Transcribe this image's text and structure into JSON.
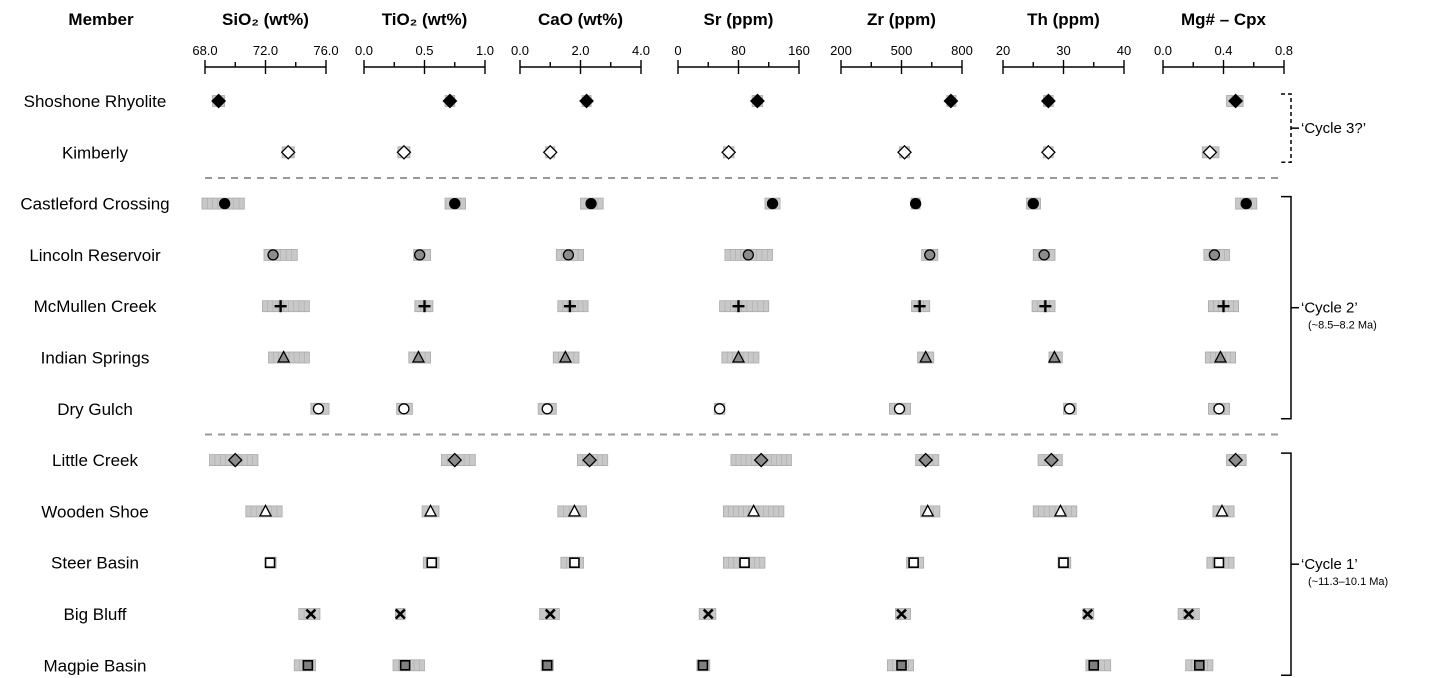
{
  "chart_data": {
    "type": "scatter",
    "member_header": "Member",
    "columns": [
      {
        "title": "SiO₂ (wt%)",
        "ticks": [
          "68.0",
          "72.0",
          "76.0"
        ],
        "xlim": [
          68,
          76
        ]
      },
      {
        "title": "TiO₂ (wt%)",
        "ticks": [
          "0.0",
          "0.5",
          "1.0"
        ],
        "xlim": [
          0,
          1
        ]
      },
      {
        "title": "CaO (wt%)",
        "ticks": [
          "0.0",
          "2.0",
          "4.0"
        ],
        "xlim": [
          0,
          4
        ]
      },
      {
        "title": "Sr (ppm)",
        "ticks": [
          "0",
          "80",
          "160"
        ],
        "xlim": [
          0,
          160
        ]
      },
      {
        "title": "Zr (ppm)",
        "ticks": [
          "200",
          "500",
          "800"
        ],
        "xlim": [
          200,
          800
        ]
      },
      {
        "title": "Th (ppm)",
        "ticks": [
          "20",
          "30",
          "40"
        ],
        "xlim": [
          20,
          40
        ]
      },
      {
        "title": "Mg# – Cpx",
        "ticks": [
          "0.0",
          "0.4",
          "0.8"
        ],
        "xlim": [
          0,
          0.8
        ]
      }
    ],
    "members": [
      {
        "name": "Shoshone Rhyolite",
        "marker": "diamond",
        "fill": "#000000",
        "values": [
          68.9,
          0.71,
          2.2,
          105,
          745,
          27.5,
          0.48
        ],
        "ranges": [
          [
            68.5,
            69.3
          ],
          [
            0.67,
            0.75
          ],
          [
            2.05,
            2.35
          ],
          [
            98,
            112
          ],
          [
            725,
            770
          ],
          [
            26.7,
            28.3
          ],
          [
            0.42,
            0.53
          ]
        ]
      },
      {
        "name": "Kimberly",
        "marker": "diamond",
        "fill": "#ffffff",
        "values": [
          73.5,
          0.33,
          1.0,
          67,
          515,
          27.5,
          0.31
        ],
        "ranges": [
          [
            73.1,
            73.9
          ],
          [
            0.28,
            0.38
          ],
          [
            0.85,
            1.15
          ],
          [
            60,
            74
          ],
          [
            490,
            540
          ],
          [
            26.7,
            28.3
          ],
          [
            0.26,
            0.37
          ]
        ]
      },
      {
        "name": "Castleford Crossing",
        "marker": "circle",
        "fill": "#000000",
        "values": [
          69.3,
          0.75,
          2.35,
          125,
          570,
          25.0,
          0.55
        ],
        "ranges": [
          [
            67.8,
            70.6
          ],
          [
            0.67,
            0.84
          ],
          [
            2.0,
            2.75
          ],
          [
            115,
            135
          ],
          [
            548,
            592
          ],
          [
            23.9,
            26.2
          ],
          [
            0.48,
            0.62
          ]
        ]
      },
      {
        "name": "Lincoln Reservoir",
        "marker": "circle",
        "fill": "#8c8c8c",
        "values": [
          72.5,
          0.46,
          1.6,
          93,
          640,
          26.8,
          0.34
        ],
        "ranges": [
          [
            71.9,
            74.1
          ],
          [
            0.41,
            0.55
          ],
          [
            1.2,
            2.1
          ],
          [
            62,
            125
          ],
          [
            600,
            680
          ],
          [
            25.0,
            28.6
          ],
          [
            0.27,
            0.44
          ]
        ]
      },
      {
        "name": "McMullen Creek",
        "marker": "plus",
        "fill": "#000000",
        "values": [
          73.0,
          0.5,
          1.65,
          80,
          590,
          27.0,
          0.4
        ],
        "ranges": [
          [
            71.8,
            74.9
          ],
          [
            0.42,
            0.57
          ],
          [
            1.25,
            2.25
          ],
          [
            55,
            120
          ],
          [
            550,
            640
          ],
          [
            24.8,
            28.6
          ],
          [
            0.3,
            0.5
          ]
        ]
      },
      {
        "name": "Indian Springs",
        "marker": "triangle",
        "fill": "#8c8c8c",
        "values": [
          73.2,
          0.45,
          1.5,
          80,
          620,
          28.5,
          0.38
        ],
        "ranges": [
          [
            72.2,
            74.9
          ],
          [
            0.37,
            0.55
          ],
          [
            1.1,
            1.95
          ],
          [
            58,
            107
          ],
          [
            580,
            660
          ],
          [
            27.6,
            29.8
          ],
          [
            0.28,
            0.48
          ]
        ]
      },
      {
        "name": "Dry Gulch",
        "marker": "circle",
        "fill": "#ffffff",
        "values": [
          75.5,
          0.33,
          0.9,
          55,
          490,
          31.0,
          0.37
        ],
        "ranges": [
          [
            75.0,
            76.2
          ],
          [
            0.27,
            0.4
          ],
          [
            0.6,
            1.2
          ],
          [
            48,
            62
          ],
          [
            440,
            545
          ],
          [
            30.0,
            32.1
          ],
          [
            0.3,
            0.44
          ]
        ]
      },
      {
        "name": "Little Creek",
        "marker": "diamond",
        "fill": "#8c8c8c",
        "values": [
          70.0,
          0.75,
          2.3,
          110,
          620,
          28.0,
          0.48
        ],
        "ranges": [
          [
            68.3,
            71.5
          ],
          [
            0.64,
            0.92
          ],
          [
            1.9,
            2.9
          ],
          [
            70,
            150
          ],
          [
            570,
            685
          ],
          [
            25.8,
            29.8
          ],
          [
            0.42,
            0.55
          ]
        ]
      },
      {
        "name": "Wooden Shoe",
        "marker": "triangle",
        "fill": "#ffffff",
        "values": [
          72.0,
          0.55,
          1.8,
          100,
          630,
          29.5,
          0.39
        ],
        "ranges": [
          [
            70.7,
            73.1
          ],
          [
            0.48,
            0.62
          ],
          [
            1.25,
            2.2
          ],
          [
            60,
            140
          ],
          [
            595,
            690
          ],
          [
            25.0,
            32.2
          ],
          [
            0.33,
            0.47
          ]
        ]
      },
      {
        "name": "Steer Basin",
        "marker": "square",
        "fill": "#ffffff",
        "values": [
          72.3,
          0.56,
          1.8,
          88,
          560,
          30.0,
          0.37
        ],
        "ranges": [
          [
            72.0,
            72.7
          ],
          [
            0.49,
            0.62
          ],
          [
            1.35,
            2.1
          ],
          [
            60,
            115
          ],
          [
            525,
            610
          ],
          [
            29.1,
            31.2
          ],
          [
            0.29,
            0.47
          ]
        ]
      },
      {
        "name": "Big Bluff",
        "marker": "x",
        "fill": "#000000",
        "values": [
          75.0,
          0.3,
          1.0,
          40,
          500,
          34.0,
          0.17
        ],
        "ranges": [
          [
            74.2,
            75.6
          ],
          [
            0.26,
            0.34
          ],
          [
            0.65,
            1.3
          ],
          [
            28,
            50
          ],
          [
            470,
            545
          ],
          [
            33.2,
            35.0
          ],
          [
            0.1,
            0.24
          ]
        ]
      },
      {
        "name": "Magpie Basin",
        "marker": "square",
        "fill": "#808080",
        "values": [
          74.8,
          0.34,
          0.9,
          33,
          500,
          35.0,
          0.24
        ],
        "ranges": [
          [
            73.9,
            75.3
          ],
          [
            0.24,
            0.5
          ],
          [
            0.7,
            1.1
          ],
          [
            25,
            42
          ],
          [
            430,
            560
          ],
          [
            33.7,
            37.8
          ],
          [
            0.15,
            0.33
          ]
        ]
      }
    ],
    "dividers_after": [
      1,
      6
    ],
    "cycles": [
      {
        "label": "‘Cycle 3?’",
        "subtitle": "",
        "rows": [
          0,
          1
        ],
        "style": "dashed"
      },
      {
        "label": "‘Cycle 2’",
        "subtitle": "(~8.5–8.2 Ma)",
        "rows": [
          2,
          6
        ],
        "style": "solid"
      },
      {
        "label": "‘Cycle 1’",
        "subtitle": "(~11.3–10.1 Ma)",
        "rows": [
          7,
          11
        ],
        "style": "solid"
      }
    ],
    "range_color": "#c8c8c8"
  }
}
